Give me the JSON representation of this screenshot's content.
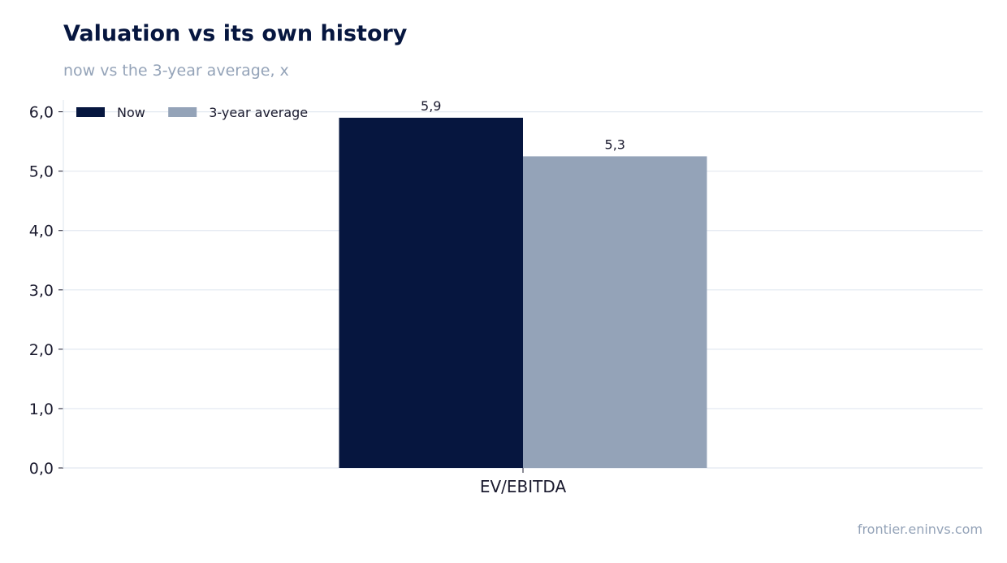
{
  "header": {
    "title": "Valuation vs its own history",
    "subtitle": "now vs the 3-year average, x"
  },
  "footer": {
    "source": "frontier.eninvs.com"
  },
  "chart_data": {
    "type": "bar",
    "categories": [
      "EV/EBITDA"
    ],
    "series": [
      {
        "name": "Now",
        "values": [
          5.9
        ],
        "color": "#06163f",
        "labels": [
          "5,9"
        ]
      },
      {
        "name": "3-year average",
        "values": [
          5.25
        ],
        "color": "#94a3b8",
        "labels": [
          "5,3"
        ]
      }
    ],
    "title": "Valuation vs its own history",
    "subtitle": "now vs the 3-year average, x",
    "ylim": [
      0,
      6.2
    ],
    "yticks": [
      0,
      1,
      2,
      3,
      4,
      5,
      6
    ],
    "ytick_labels": [
      "0,0",
      "1,0",
      "2,0",
      "3,0",
      "4,0",
      "5,0",
      "6,0"
    ],
    "grid": true,
    "legend": "top-left"
  }
}
